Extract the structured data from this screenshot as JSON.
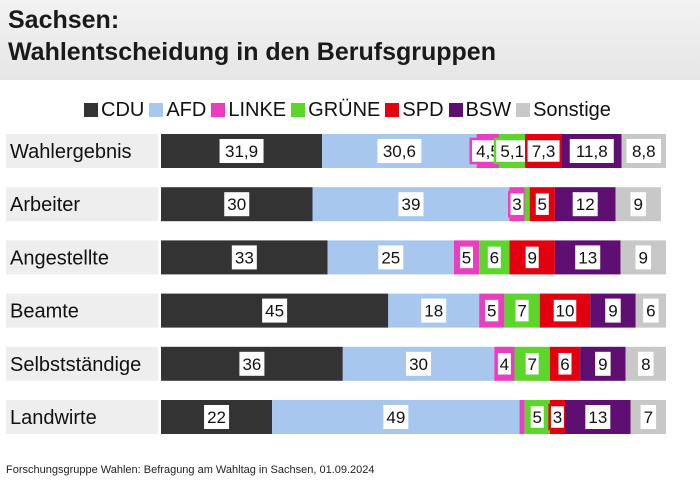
{
  "header": {
    "title_line1": "Sachsen:",
    "title_line2": "Wahlentscheidung in den Berufsgruppen"
  },
  "legend": [
    {
      "label": "CDU",
      "color": "#333333"
    },
    {
      "label": "AFD",
      "color": "#a7c7ef"
    },
    {
      "label": "LINKE",
      "color": "#e83fc0"
    },
    {
      "label": "GRÜNE",
      "color": "#5dd62c"
    },
    {
      "label": "SPD",
      "color": "#e3000f"
    },
    {
      "label": "BSW",
      "color": "#5f0f72"
    },
    {
      "label": "Sonstige",
      "color": "#c8c8c8"
    }
  ],
  "chart_data": {
    "type": "bar",
    "orientation": "horizontal",
    "stacked": true,
    "categories": [
      "Wahlergebnis",
      "Arbeiter",
      "Angestellte",
      "Beamte",
      "Selbstständige",
      "Landwirte"
    ],
    "series": [
      {
        "name": "CDU",
        "color": "#333333",
        "values": [
          31.9,
          30,
          33,
          45,
          36,
          22
        ],
        "labels": [
          "31,9",
          "30",
          "33",
          "45",
          "36",
          "22"
        ]
      },
      {
        "name": "AFD",
        "color": "#a7c7ef",
        "values": [
          30.6,
          39,
          25,
          18,
          30,
          49
        ],
        "labels": [
          "30,6",
          "39",
          "25",
          "18",
          "30",
          "49"
        ]
      },
      {
        "name": "LINKE",
        "color": "#e83fc0",
        "values": [
          4.5,
          3,
          5,
          5,
          4,
          1
        ],
        "labels": [
          "4,5",
          "3",
          "5",
          "5",
          "4",
          ""
        ]
      },
      {
        "name": "GRÜNE",
        "color": "#5dd62c",
        "values": [
          5.1,
          1,
          6,
          7,
          7,
          5
        ],
        "labels": [
          "5,1",
          "",
          "6",
          "7",
          "7",
          "5"
        ]
      },
      {
        "name": "SPD",
        "color": "#e3000f",
        "values": [
          7.3,
          5,
          9,
          10,
          6,
          3
        ],
        "labels": [
          "7,3",
          "5",
          "9",
          "10",
          "6",
          "3"
        ]
      },
      {
        "name": "BSW",
        "color": "#5f0f72",
        "values": [
          11.8,
          12,
          13,
          9,
          9,
          13
        ],
        "labels": [
          "11,8",
          "12",
          "13",
          "9",
          "9",
          "13"
        ]
      },
      {
        "name": "Sonstige",
        "color": "#c8c8c8",
        "values": [
          8.8,
          9,
          9,
          6,
          8,
          7
        ],
        "labels": [
          "8,8",
          "9",
          "9",
          "6",
          "8",
          "7"
        ]
      }
    ],
    "xlim": [
      0,
      100
    ],
    "legend_position": "top"
  },
  "source": "Forschungsgruppe Wahlen: Befragung am Wahltag in Sachsen, 01.09.2024"
}
